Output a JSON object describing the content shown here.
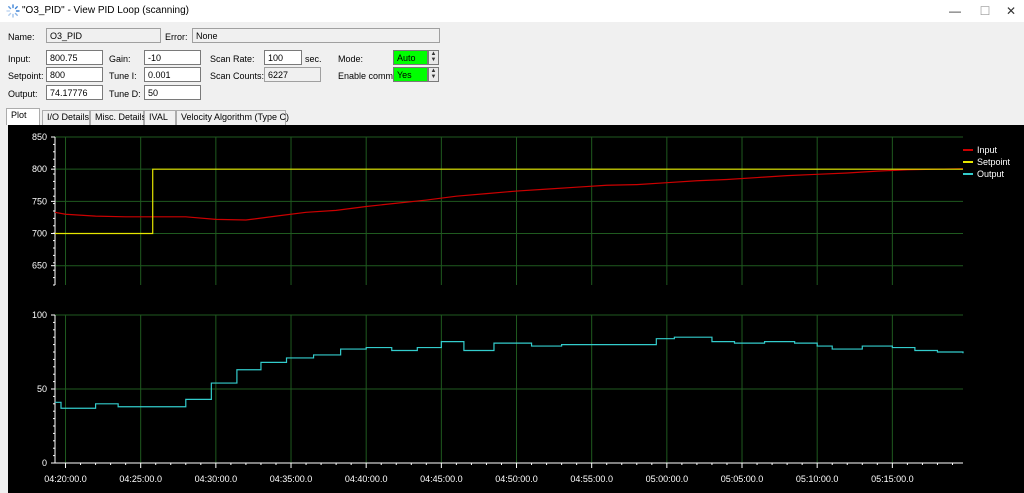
{
  "window": {
    "title": "\"O3_PID\" - View PID Loop (scanning)",
    "minimize_glyph": "—",
    "maximize_glyph": "☐",
    "close_glyph": "✕"
  },
  "header": {
    "name_label": "Name:",
    "name_value": "O3_PID",
    "error_label": "Error:",
    "error_value": "None",
    "input_label": "Input:",
    "input_value": "800.75",
    "setpoint_label": "Setpoint:",
    "setpoint_value": "800",
    "output_label": "Output:",
    "output_value": "74.17776",
    "gain_label": "Gain:",
    "gain_value": "-10",
    "tunei_label": "Tune I:",
    "tunei_value": "0.001",
    "tuned_label": "Tune D:",
    "tuned_value": "50",
    "scanrate_label": "Scan Rate:",
    "scanrate_value": "100",
    "scanrate_unit": "sec.",
    "scancounts_label": "Scan Counts:",
    "scancounts_value": "6227",
    "mode_label": "Mode:",
    "mode_value": "Auto",
    "enablecomm_label": "Enable comm:",
    "enablecomm_value": "Yes"
  },
  "tabs": [
    {
      "label": "Plot",
      "active": true
    },
    {
      "label": "I/O Details",
      "active": false
    },
    {
      "label": "Misc. Details",
      "active": false
    },
    {
      "label": "IVAL",
      "active": false
    },
    {
      "label": "Velocity Algorithm (Type C)",
      "active": false
    }
  ],
  "colors": {
    "input": "#cc0000",
    "setpoint": "#e6e600",
    "output": "#33cccc",
    "grid": "#1f5a1f",
    "combo_bg": "#00ff00"
  },
  "chart_data": [
    {
      "type": "line",
      "title": "",
      "x_ticks": [
        "04:20:00.0",
        "04:25:00.0",
        "04:30:00.0",
        "04:35:00.0",
        "04:40:00.0",
        "04:45:00.0",
        "04:50:00.0",
        "04:55:00.0",
        "05:00:00.0",
        "05:05:00.0",
        "05:10:00.0",
        "05:15:00.0"
      ],
      "x_unit": "minutes since 04:20:00",
      "xlim": [
        -0.7,
        59.7
      ],
      "ylim": [
        620,
        850
      ],
      "y_ticks": [
        650,
        700,
        750,
        800,
        850
      ],
      "grid": true,
      "legend_position": "top-right",
      "series": [
        {
          "name": "Input",
          "x": [
            -0.7,
            0,
            2,
            4,
            6,
            8,
            10,
            12,
            14,
            16,
            18,
            20,
            22,
            24,
            26,
            28,
            30,
            32,
            34,
            36,
            38,
            40,
            42,
            44,
            46,
            48,
            50,
            52,
            54,
            56,
            58,
            59.7
          ],
          "y": [
            733,
            730,
            727,
            726,
            726,
            726,
            722,
            721,
            727,
            733,
            736,
            742,
            747,
            752,
            758,
            762,
            766,
            769,
            772,
            775,
            776,
            779,
            782,
            784,
            787,
            790,
            792,
            794,
            797,
            799,
            800,
            800.75
          ]
        },
        {
          "name": "Setpoint",
          "x": [
            -0.7,
            5.8,
            5.8,
            59.7
          ],
          "y": [
            700,
            700,
            800,
            800
          ]
        }
      ]
    },
    {
      "type": "line",
      "title": "",
      "x_ticks": [
        "04:20:00.0",
        "04:25:00.0",
        "04:30:00.0",
        "04:35:00.0",
        "04:40:00.0",
        "04:45:00.0",
        "04:50:00.0",
        "04:55:00.0",
        "05:00:00.0",
        "05:05:00.0",
        "05:10:00.0",
        "05:15:00.0"
      ],
      "x_unit": "minutes since 04:20:00",
      "xlim": [
        -0.7,
        59.7
      ],
      "ylim": [
        0,
        100
      ],
      "y_ticks": [
        0,
        50,
        100
      ],
      "grid": true,
      "series": [
        {
          "name": "Output",
          "x": [
            -0.7,
            -0.3,
            2,
            3.5,
            6.3,
            8,
            9.7,
            11.4,
            13,
            14.7,
            16.5,
            18.3,
            20,
            21.7,
            23.4,
            25,
            26.5,
            28.5,
            31,
            33,
            36.5,
            39.3,
            40.5,
            43,
            44.5,
            46.5,
            48.5,
            50,
            51,
            53,
            55,
            56.5,
            58,
            59.7
          ],
          "y": [
            41,
            37,
            40,
            38,
            38,
            43,
            54,
            63,
            68,
            71,
            73,
            77,
            78,
            76,
            78,
            82,
            76,
            81,
            79,
            80,
            80,
            84,
            85,
            82,
            81,
            82,
            81,
            79,
            77,
            79,
            78,
            76,
            75,
            74.17776
          ]
        }
      ]
    }
  ]
}
